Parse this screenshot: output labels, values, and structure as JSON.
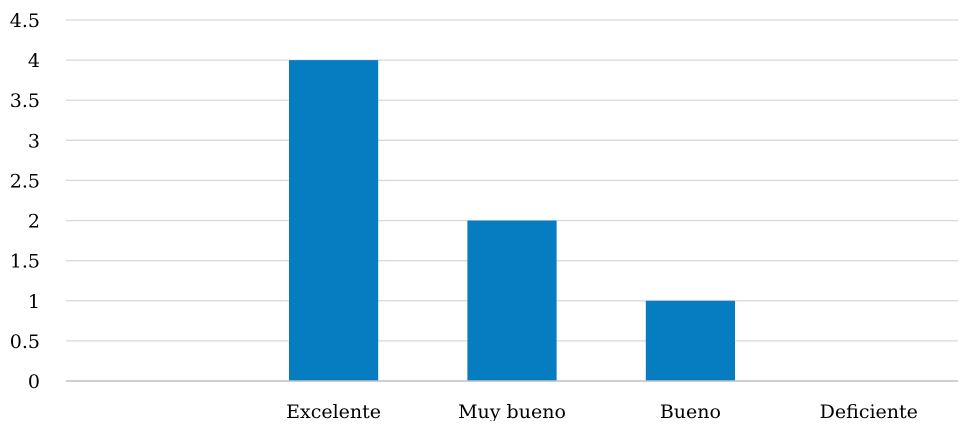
{
  "chart_data": {
    "type": "bar",
    "categories": [
      "",
      "Excelente",
      "Muy bueno",
      "Bueno",
      "Deficiente"
    ],
    "values": [
      0,
      4,
      2,
      1,
      0
    ],
    "ylim": [
      0,
      4.5
    ],
    "yticks": [
      0,
      0.5,
      1,
      1.5,
      2,
      2.5,
      3,
      3.5,
      4,
      4.5
    ],
    "ytick_labels": [
      "0",
      "0.5",
      "1",
      "1.5",
      "2",
      "2.5",
      "3",
      "3.5",
      "4",
      "4.5"
    ],
    "grid": true,
    "legend": false,
    "colors": {
      "bar": "#077dc1",
      "grid": "#d9d9d9",
      "axis": "#bfbfbf"
    }
  }
}
